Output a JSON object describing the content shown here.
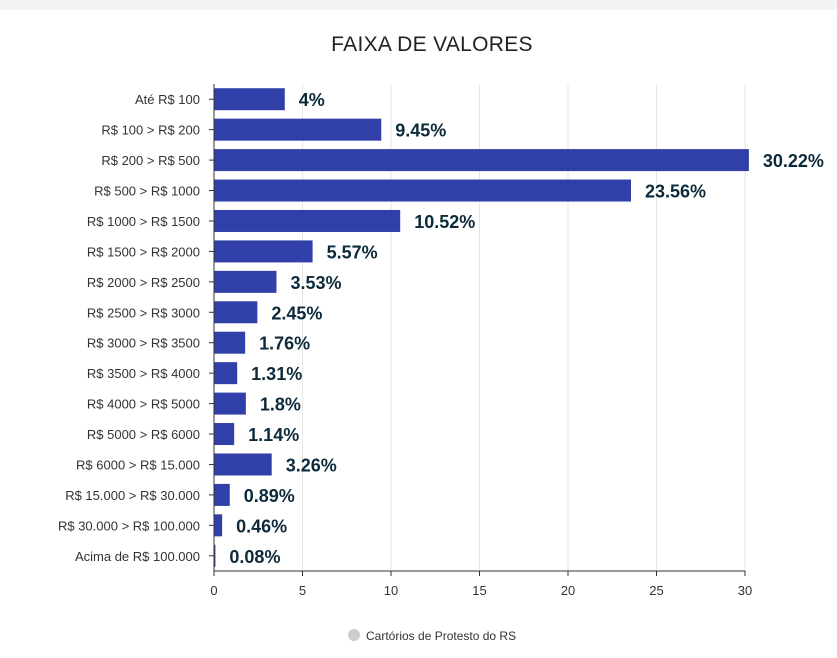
{
  "chart_data": {
    "type": "bar",
    "orientation": "horizontal",
    "title": "FAIXA DE VALORES",
    "categories": [
      "Até R$ 100",
      "R$ 100 > R$ 200",
      "R$ 200 > R$ 500",
      "R$ 500 > R$ 1000",
      "R$ 1000 > R$ 1500",
      "R$ 1500 > R$ 2000",
      "R$ 2000 > R$ 2500",
      "R$ 2500 > R$ 3000",
      "R$ 3000 > R$ 3500",
      "R$ 3500 > R$ 4000",
      "R$ 4000 > R$ 5000",
      "R$ 5000 > R$ 6000",
      "R$ 6000 > R$ 15.000",
      "R$ 15.000 > R$ 30.000",
      "R$ 30.000 > R$ 100.000",
      "Acima de R$ 100.000"
    ],
    "series": [
      {
        "name": "Cartórios de Protesto do RS",
        "values": [
          4,
          9.45,
          30.22,
          23.56,
          10.52,
          5.57,
          3.53,
          2.45,
          1.76,
          1.31,
          1.8,
          1.14,
          3.26,
          0.89,
          0.46,
          0.08
        ],
        "labels": [
          "4%",
          "9.45%",
          "30.22%",
          "23.56%",
          "10.52%",
          "5.57%",
          "3.53%",
          "2.45%",
          "1.76%",
          "1.31%",
          "1.8%",
          "1.14%",
          "3.26%",
          "0.89%",
          "0.46%",
          "0.08%"
        ]
      }
    ],
    "xlim": [
      0,
      30
    ],
    "xticks": [
      "0",
      "5",
      "10",
      "15",
      "20",
      "25",
      "30"
    ],
    "grid": true,
    "legend": "bottom-center",
    "colors": {
      "bar": "#3040a8",
      "label": "#0d2a3b",
      "grid": "#e6e6e6",
      "legend_marker": "#cccccc"
    }
  }
}
